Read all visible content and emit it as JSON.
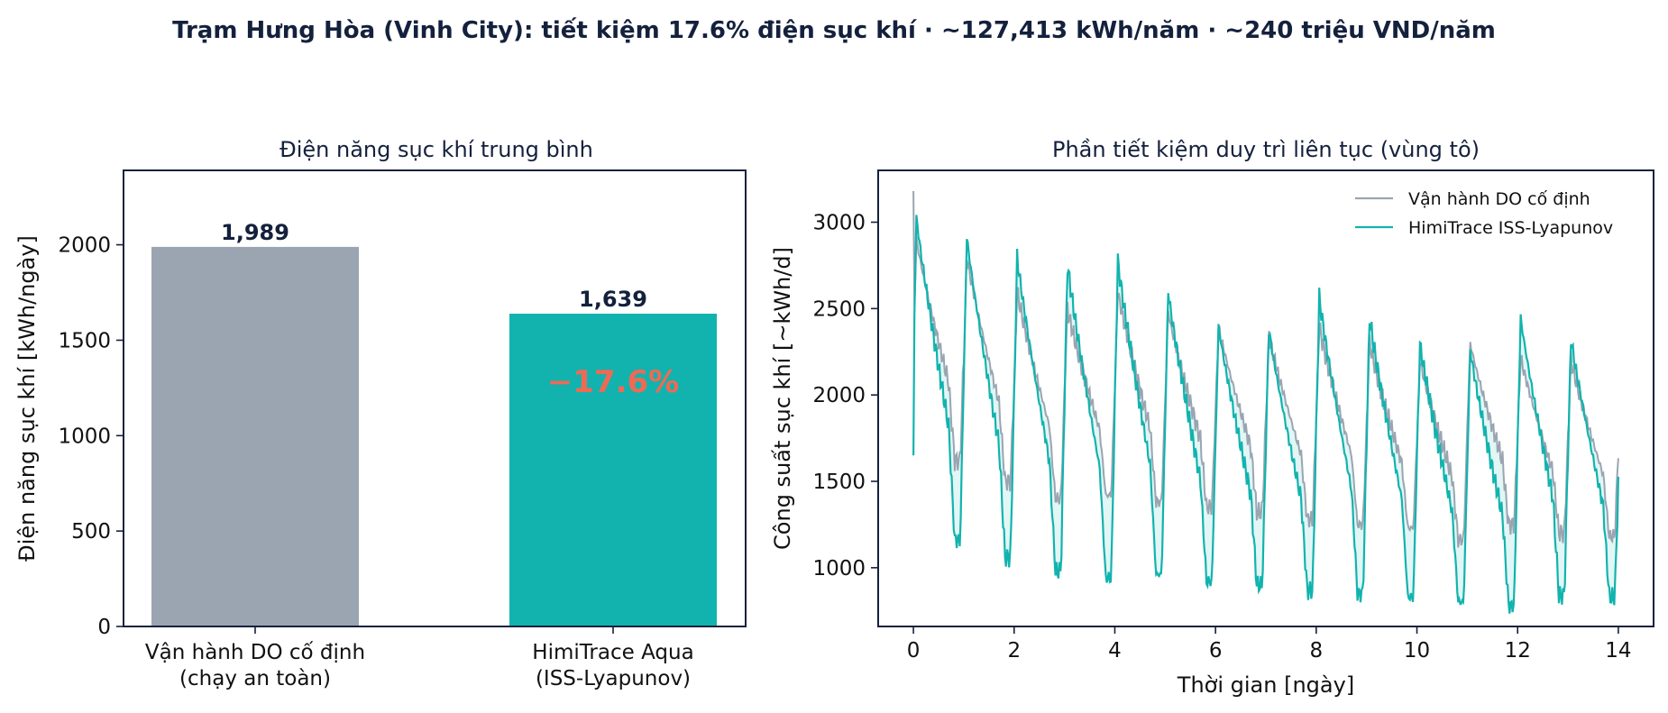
{
  "suptitle": "Trạm Hưng Hòa (Vinh City): tiết kiệm 17.6% điện sục khí  ·  ~127,413 kWh/năm  ·  ~240 triệu VND/năm",
  "colors": {
    "baseline": "#9aa5b1",
    "optimized": "#12b3ae",
    "accent": "#ee6a55",
    "text": "#14213d"
  },
  "chart_data": [
    {
      "type": "bar",
      "title": "Điện năng sục khí trung bình",
      "ylabel": "Điện năng sục khí [kWh/ngày]",
      "xlabel": "",
      "categories": [
        "Vận hành DO cố định\n(chạy an toàn)",
        "HimiTrace Aqua\n(ISS-Lyapunov)"
      ],
      "values": [
        1989,
        1639
      ],
      "value_labels": [
        "1,989",
        "1,639"
      ],
      "annotation": "−17.6%",
      "ylim": [
        0,
        2390
      ],
      "yticks": [
        0,
        500,
        1000,
        1500,
        2000
      ],
      "grid": false
    },
    {
      "type": "line",
      "title": "Phần tiết kiệm duy trì liên tục (vùng tô)",
      "xlabel": "Thời gian [ngày]",
      "ylabel": "Công suất sục khí [~kWh/d]",
      "xlim": [
        -0.7,
        14.7
      ],
      "ylim": [
        660,
        3300
      ],
      "xticks": [
        0,
        2,
        4,
        6,
        8,
        10,
        12,
        14
      ],
      "yticks": [
        1000,
        1500,
        2000,
        2500,
        3000
      ],
      "legend": "top-right",
      "fill_between": true,
      "grid": false,
      "series": [
        {
          "name": "Vận hành DO cố định",
          "peaks": [
            2900,
            2800,
            2600,
            2500,
            2600,
            2480,
            2400,
            2350,
            2400,
            2300,
            2200,
            2300,
            2220,
            2200,
            2100
          ],
          "troughs": [
            1620,
            1500,
            1400,
            1420,
            1380,
            1350,
            1320,
            1280,
            1250,
            1230,
            1160,
            1250,
            1200,
            1180,
            1160
          ],
          "start_value": 3180
        },
        {
          "name": "HimiTrace ISS-Lyapunov",
          "peaks": [
            3030,
            2920,
            2800,
            2760,
            2780,
            2600,
            2400,
            2380,
            2570,
            2450,
            2300,
            2260,
            2450,
            2330,
            2020
          ],
          "troughs": [
            1160,
            1060,
            980,
            940,
            960,
            920,
            900,
            870,
            850,
            830,
            800,
            780,
            840,
            830,
            1000
          ],
          "start_value": 1650
        }
      ]
    }
  ]
}
